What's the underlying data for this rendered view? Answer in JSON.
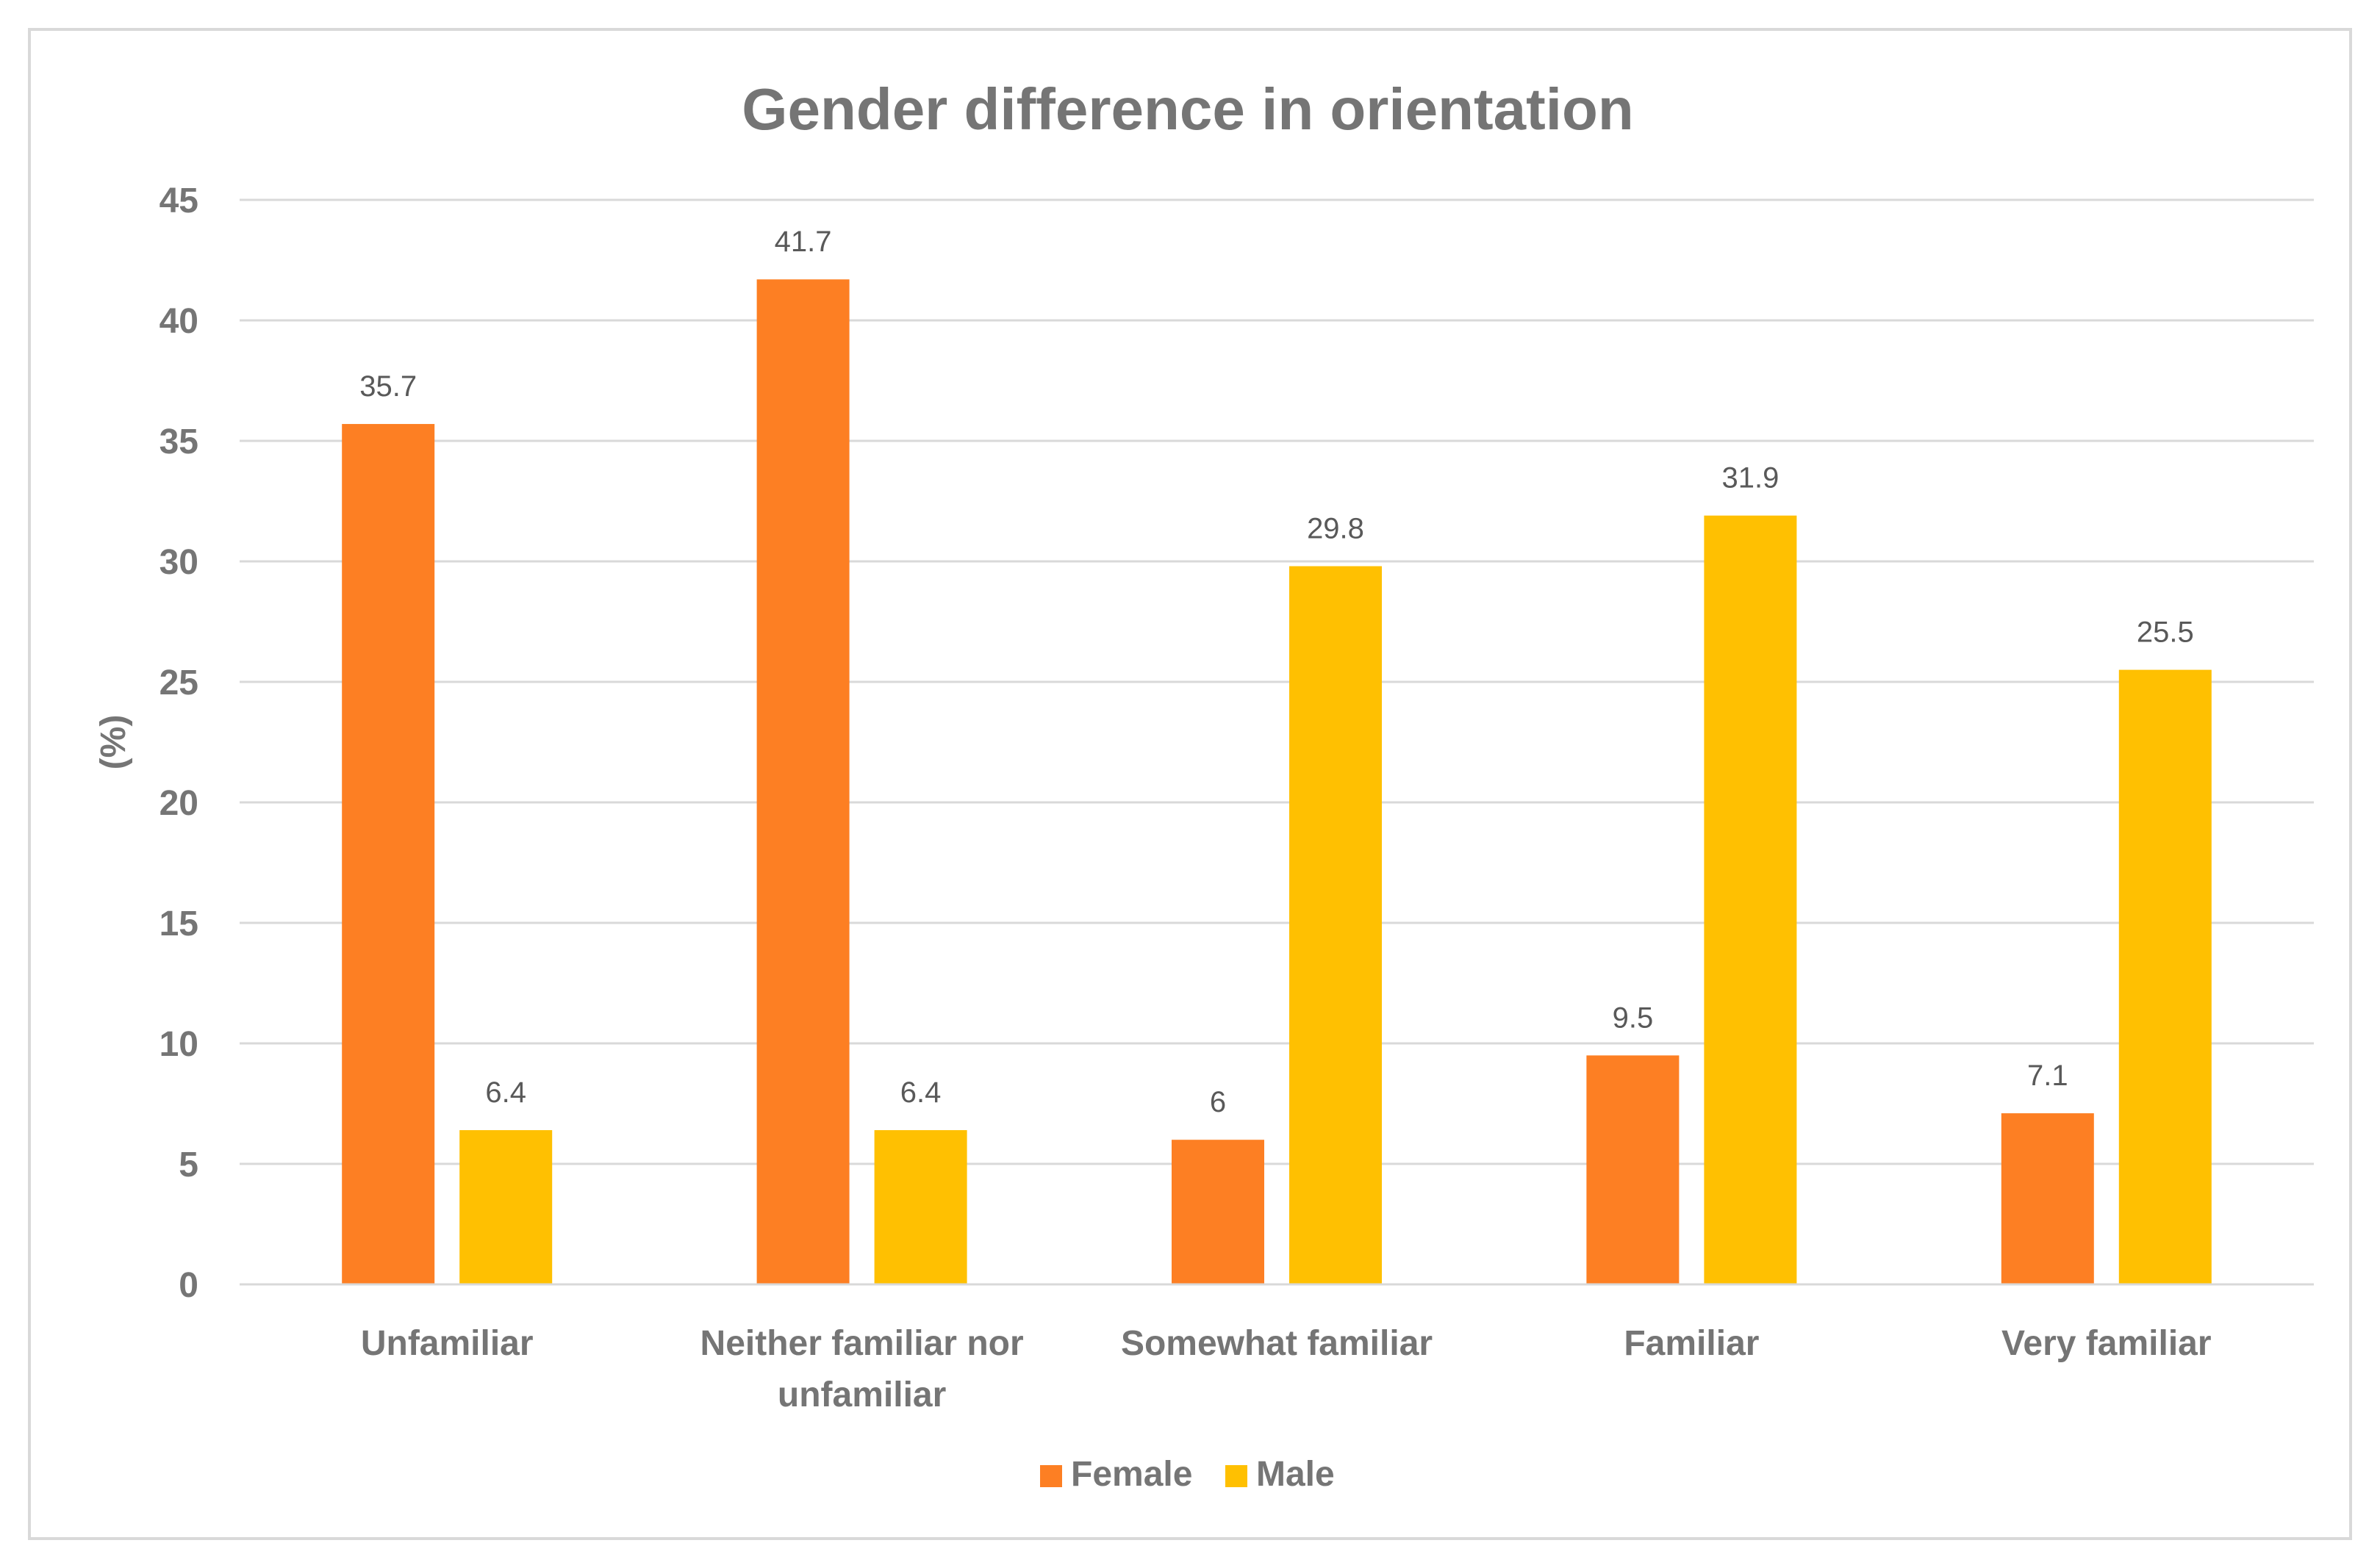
{
  "chart_data": {
    "type": "bar",
    "title": "Gender difference in orientation",
    "xlabel": "",
    "ylabel": "(%)",
    "ylim": [
      0,
      45
    ],
    "ytick_step": 5,
    "yticks": [
      "0",
      "5",
      "10",
      "15",
      "20",
      "25",
      "30",
      "35",
      "40",
      "45"
    ],
    "grid": true,
    "legend_position": "bottom",
    "categories": [
      [
        "Unfamiliar"
      ],
      [
        "Neither familiar nor",
        "unfamiliar"
      ],
      [
        "Somewhat familiar"
      ],
      [
        "Familiar"
      ],
      [
        "Very familiar"
      ]
    ],
    "series": [
      {
        "name": "Female",
        "color": "#fd7f23",
        "values": [
          35.7,
          41.7,
          6,
          9.5,
          7.1
        ],
        "labels": [
          "35.7",
          "41.7",
          "6",
          "9.5",
          "7.1"
        ]
      },
      {
        "name": "Male",
        "color": "#ffc001",
        "values": [
          6.4,
          6.4,
          29.8,
          31.9,
          25.5
        ],
        "labels": [
          "6.4",
          "6.4",
          "29.8",
          "31.9",
          "25.5"
        ]
      }
    ],
    "colors": {
      "text": "#757575",
      "label": "#595959",
      "grid": "#d9d9d9",
      "border": "#d9d9d9"
    }
  }
}
